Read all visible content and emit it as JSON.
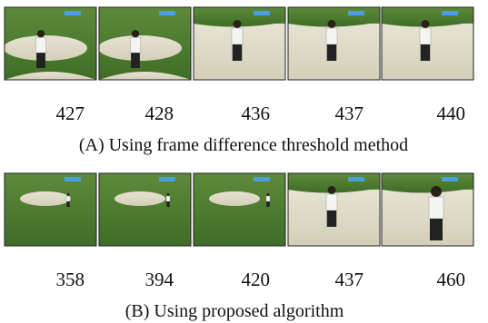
{
  "panels": [
    {
      "frames": [
        427,
        428,
        436,
        437,
        440
      ],
      "caption": "(A)  Using frame difference threshold method"
    },
    {
      "frames": [
        358,
        394,
        420,
        437,
        460
      ],
      "caption": "(B) Using proposed algorithm"
    }
  ]
}
